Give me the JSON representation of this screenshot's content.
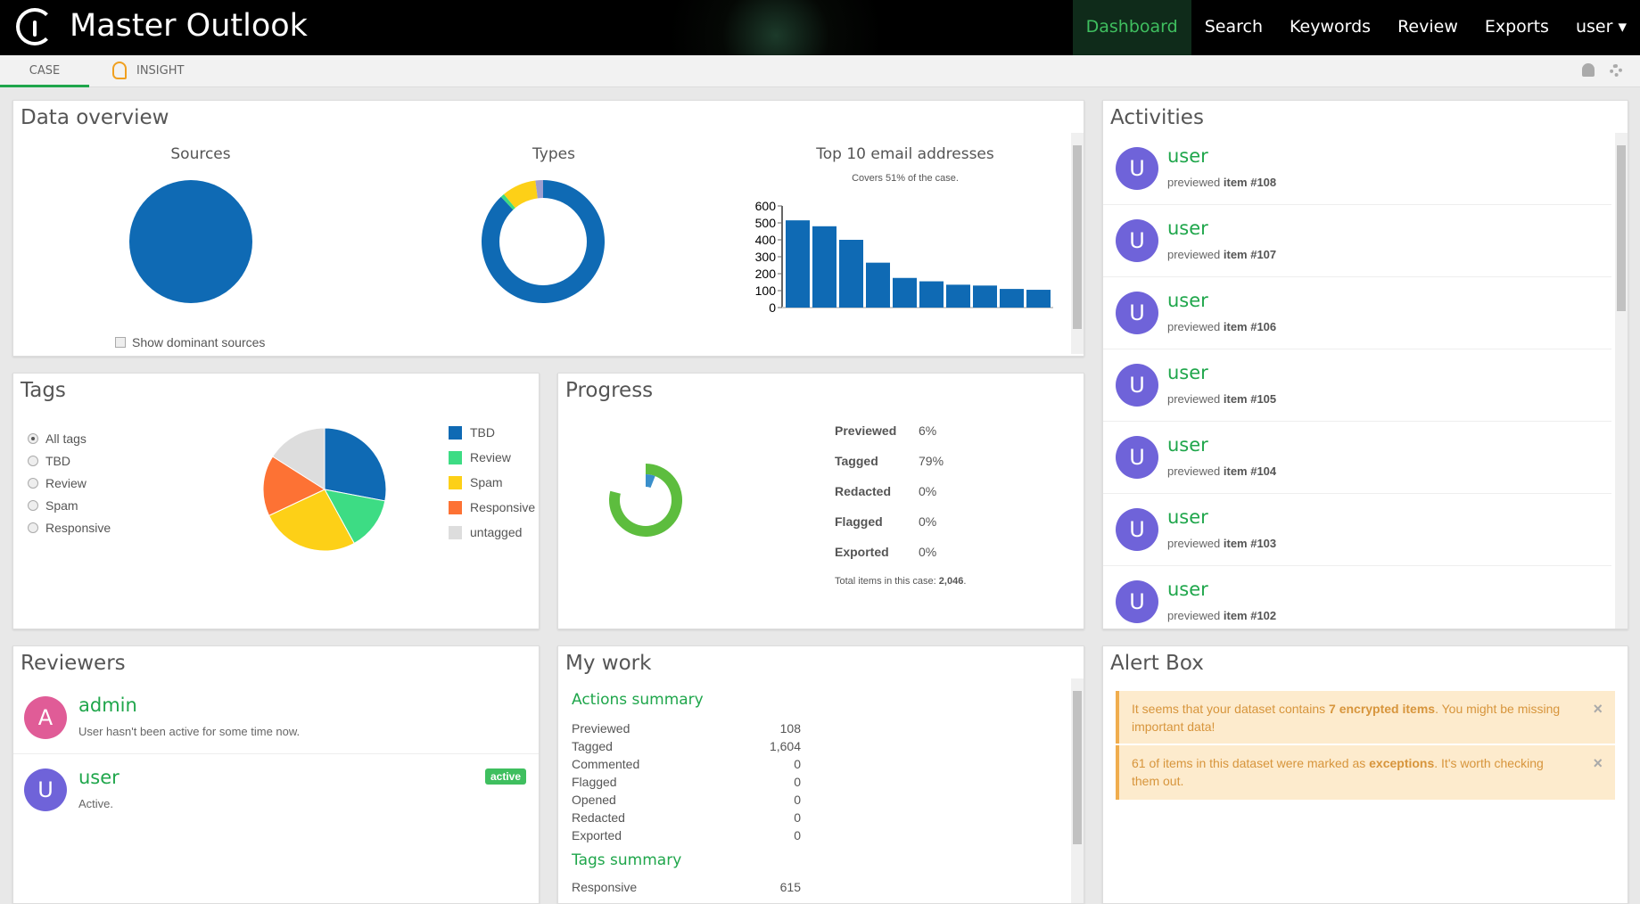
{
  "app": {
    "title": "Master Outlook"
  },
  "nav": {
    "items": [
      "Dashboard",
      "Search",
      "Keywords",
      "Review",
      "Exports",
      "user ▾"
    ]
  },
  "subnav": {
    "case": "CASE",
    "insight": "INSIGHT"
  },
  "data_overview": {
    "title": "Data overview",
    "sources_title": "Sources",
    "types_title": "Types",
    "top_title": "Top 10 email addresses",
    "top_subtitle": "Covers 51% of the case.",
    "show_dominant": "Show dominant sources"
  },
  "chart_data": [
    {
      "type": "pie",
      "title": "Sources",
      "values": [
        100
      ],
      "colors": [
        "#0f6ab4"
      ]
    },
    {
      "type": "pie",
      "title": "Types",
      "donut": true,
      "values": [
        88,
        1,
        9,
        2
      ],
      "colors": [
        "#0f6ab4",
        "#3ddc84",
        "#fdd017",
        "#9e9ecf"
      ]
    },
    {
      "type": "bar",
      "title": "Top 10 email addresses",
      "subtitle": "Covers 51% of the case.",
      "values": [
        515,
        480,
        400,
        265,
        175,
        155,
        135,
        130,
        110,
        105
      ],
      "ylim": [
        0,
        600
      ],
      "yticks": [
        "0",
        "100",
        "200",
        "300",
        "400",
        "500",
        "600"
      ],
      "color": "#0f6ab4"
    },
    {
      "type": "pie",
      "title": "Tags",
      "categories": [
        "TBD",
        "Review",
        "Spam",
        "Responsive",
        "untagged"
      ],
      "values": [
        28,
        14,
        26,
        16,
        16
      ],
      "colors": [
        "#0f6ab4",
        "#3ddc84",
        "#fdd017",
        "#fd7234",
        "#dddddd"
      ]
    },
    {
      "type": "pie",
      "title": "Progress",
      "donut": true,
      "values": {
        "Previewed": 6,
        "Tagged": 79
      },
      "colors": {
        "Tagged": "#5dbd3e",
        "Previewed": "#3a8fcb"
      }
    }
  ],
  "tags": {
    "title": "Tags",
    "filters": [
      "All tags",
      "TBD",
      "Review",
      "Spam",
      "Responsive"
    ],
    "legend": [
      "TBD",
      "Review",
      "Spam",
      "Responsive",
      "untagged"
    ]
  },
  "progress": {
    "title": "Progress",
    "rows": [
      {
        "label": "Previewed",
        "value": "6%"
      },
      {
        "label": "Tagged",
        "value": "79%"
      },
      {
        "label": "Redacted",
        "value": "0%"
      },
      {
        "label": "Flagged",
        "value": "0%"
      },
      {
        "label": "Exported",
        "value": "0%"
      }
    ],
    "total_label": "Total items in this case:",
    "total": "2,046"
  },
  "activities": {
    "title": "Activities",
    "items": [
      {
        "user": "user",
        "initial": "U",
        "action": "previewed",
        "item": "item #108"
      },
      {
        "user": "user",
        "initial": "U",
        "action": "previewed",
        "item": "item #107"
      },
      {
        "user": "user",
        "initial": "U",
        "action": "previewed",
        "item": "item #106"
      },
      {
        "user": "user",
        "initial": "U",
        "action": "previewed",
        "item": "item #105"
      },
      {
        "user": "user",
        "initial": "U",
        "action": "previewed",
        "item": "item #104"
      },
      {
        "user": "user",
        "initial": "U",
        "action": "previewed",
        "item": "item #103"
      },
      {
        "user": "user",
        "initial": "U",
        "action": "previewed",
        "item": "item #102"
      }
    ]
  },
  "reviewers": {
    "title": "Reviewers",
    "items": [
      {
        "name": "admin",
        "initial": "A",
        "status": "User hasn't been active for some time now.",
        "color": "#e05c97"
      },
      {
        "name": "user",
        "initial": "U",
        "status": "Active.",
        "badge": "active",
        "color": "#6f63d9"
      }
    ]
  },
  "my_work": {
    "title": "My work",
    "actions_title": "Actions summary",
    "actions": [
      [
        "Previewed",
        "108"
      ],
      [
        "Tagged",
        "1,604"
      ],
      [
        "Commented",
        "0"
      ],
      [
        "Flagged",
        "0"
      ],
      [
        "Opened",
        "0"
      ],
      [
        "Redacted",
        "0"
      ],
      [
        "Exported",
        "0"
      ]
    ],
    "tags_title": "Tags summary",
    "tags": [
      [
        "Responsive",
        "615"
      ]
    ]
  },
  "alerts": {
    "title": "Alert Box",
    "items": [
      {
        "pre": "It seems that your dataset contains ",
        "bold": "7 encrypted items",
        "post": ". You might be missing important data!"
      },
      {
        "pre": "61 of items in this dataset were marked as ",
        "bold": "exceptions",
        "post": ". It's worth checking them out."
      }
    ]
  }
}
